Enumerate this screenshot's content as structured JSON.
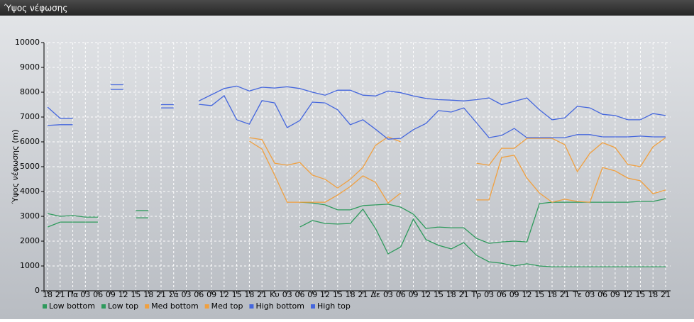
{
  "chart_data": {
    "type": "line",
    "title": "Ύψος νέφωσης",
    "y_label": "Ύψος νέφωσης (m)",
    "categories": [
      "18",
      "21",
      "Πα",
      "03",
      "06",
      "09",
      "12",
      "15",
      "18",
      "21",
      "Σά",
      "03",
      "06",
      "09",
      "12",
      "15",
      "18",
      "21",
      "Κυ",
      "03",
      "06",
      "09",
      "12",
      "15",
      "18",
      "21",
      "Δε",
      "03",
      "06",
      "09",
      "12",
      "15",
      "18",
      "21",
      "Τρ",
      "03",
      "06",
      "09",
      "12",
      "15",
      "18",
      "21",
      "Τε",
      "03",
      "06",
      "09",
      "12",
      "15",
      "18",
      "21"
    ],
    "ylim": [
      0,
      10000
    ],
    "yticks": [
      0,
      1000,
      2000,
      3000,
      4000,
      5000,
      6000,
      7000,
      8000,
      9000,
      10000
    ],
    "grid": true,
    "legend": "bottom",
    "series": [
      {
        "name": "Low bottom",
        "color": "#2e9a5c",
        "values": [
          2570,
          2770,
          2770,
          2770,
          2770,
          null,
          null,
          2940,
          2940,
          null,
          null,
          null,
          null,
          null,
          null,
          null,
          null,
          null,
          null,
          null,
          2570,
          2830,
          2710,
          2690,
          2710,
          3290,
          2510,
          1490,
          1770,
          2890,
          2060,
          1830,
          1690,
          1940,
          1430,
          1170,
          1110,
          1000,
          1090,
          1000,
          970,
          970,
          970,
          970,
          970,
          970,
          970,
          970,
          970,
          970
        ]
      },
      {
        "name": "Low top",
        "color": "#2e9a5c",
        "values": [
          3110,
          3000,
          3030,
          2970,
          2970,
          null,
          null,
          3230,
          3230,
          null,
          null,
          null,
          null,
          null,
          null,
          null,
          null,
          null,
          null,
          null,
          3570,
          3540,
          3460,
          3260,
          3260,
          3430,
          3460,
          3490,
          3370,
          3090,
          2510,
          2570,
          2540,
          2540,
          2110,
          1910,
          1970,
          2000,
          1970,
          3510,
          3570,
          3570,
          3570,
          3570,
          3570,
          3570,
          3570,
          3600,
          3600,
          3710
        ]
      },
      {
        "name": "Med bottom",
        "color": "#f0a040",
        "values": [
          null,
          null,
          null,
          null,
          null,
          null,
          null,
          null,
          null,
          null,
          null,
          null,
          null,
          null,
          null,
          null,
          6030,
          5710,
          4660,
          3570,
          3570,
          3570,
          3570,
          3860,
          4200,
          4630,
          4370,
          3540,
          3940,
          null,
          null,
          null,
          null,
          null,
          3660,
          3660,
          5370,
          5460,
          4540,
          3940,
          3570,
          3690,
          3600,
          3570,
          4970,
          4830,
          4540,
          4430,
          3910,
          4060
        ]
      },
      {
        "name": "Med top",
        "color": "#f0a040",
        "values": [
          null,
          null,
          null,
          null,
          null,
          null,
          null,
          null,
          null,
          null,
          null,
          null,
          null,
          null,
          null,
          null,
          6170,
          6090,
          5140,
          5060,
          5170,
          4660,
          4490,
          4140,
          4490,
          4970,
          5860,
          6200,
          6000,
          null,
          null,
          null,
          null,
          null,
          5140,
          5060,
          5740,
          5740,
          6140,
          6140,
          6140,
          5890,
          4800,
          5540,
          5970,
          5770,
          5090,
          5000,
          5800,
          6170
        ]
      },
      {
        "name": "High bottom",
        "color": "#4466dd",
        "values": [
          6660,
          6690,
          6690,
          null,
          null,
          8110,
          8110,
          null,
          null,
          7370,
          7370,
          null,
          7510,
          7460,
          7860,
          6890,
          6710,
          7660,
          7570,
          6570,
          6860,
          7600,
          7570,
          7290,
          6690,
          6890,
          6510,
          6110,
          6140,
          6490,
          6740,
          7260,
          7200,
          7370,
          6770,
          6170,
          6260,
          6540,
          6170,
          6170,
          6170,
          6170,
          6290,
          6290,
          6200,
          6200,
          6200,
          6230,
          6200,
          6200
        ]
      },
      {
        "name": "High top",
        "color": "#4466dd",
        "values": [
          7400,
          6950,
          6950,
          null,
          null,
          8300,
          8300,
          null,
          null,
          7500,
          7500,
          null,
          7650,
          7900,
          8150,
          8250,
          8050,
          8200,
          8170,
          8220,
          8150,
          8000,
          7880,
          8080,
          8080,
          7880,
          7850,
          8050,
          7980,
          7850,
          7750,
          7700,
          7680,
          7650,
          7700,
          7770,
          7500,
          7630,
          7770,
          7290,
          6890,
          6970,
          7430,
          7370,
          7110,
          7060,
          6890,
          6890,
          7140,
          7060
        ]
      }
    ]
  }
}
